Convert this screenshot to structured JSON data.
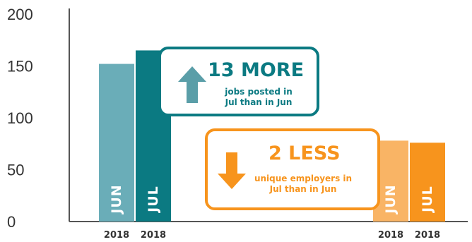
{
  "chart_data": {
    "type": "bar",
    "ylim": [
      0,
      200
    ],
    "yticks": [
      "0",
      "50",
      "100",
      "150",
      "200"
    ],
    "grid": false,
    "groups": [
      {
        "bars": [
          {
            "label": "JUN",
            "year": "2018",
            "value": 152,
            "color": "#6aadb8"
          },
          {
            "label": "JUL",
            "year": "2018",
            "value": 165,
            "color": "#0b7a82"
          }
        ]
      },
      {
        "bars": [
          {
            "label": "JUN",
            "year": "2018",
            "value": 78,
            "color": "#f9b465"
          },
          {
            "label": "JUL",
            "year": "2018",
            "value": 76,
            "color": "#f7941d"
          }
        ]
      }
    ],
    "annotations": [
      {
        "headline": "13 MORE",
        "line1": "jobs posted in",
        "line2": "Jul than in Jun",
        "direction": "up",
        "color": "#0b7a82"
      },
      {
        "headline": "2 LESS",
        "line1": "unique employers in",
        "line2": "Jul than in Jun",
        "direction": "down",
        "color": "#f7941d"
      }
    ]
  },
  "colors": {
    "axis": "#555555",
    "arrow_up": "#5a9ea8",
    "arrow_down": "#f7941d"
  },
  "icons": [
    "up-arrow-icon",
    "down-arrow-icon"
  ]
}
